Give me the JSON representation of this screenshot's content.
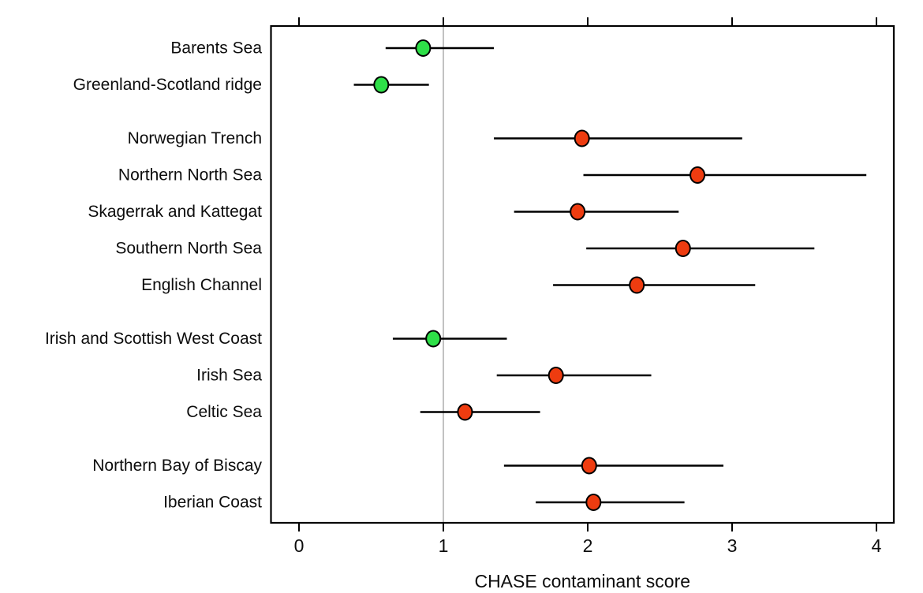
{
  "chart_data": {
    "type": "scatter",
    "subtype": "dot-plot-with-horizontal-error-bars",
    "title": "",
    "xlabel": "CHASE contaminant score",
    "ylabel": "",
    "xlim": [
      0,
      4
    ],
    "xticks": [
      0,
      1,
      2,
      3,
      4
    ],
    "grid": false,
    "legend_position": "none",
    "reference_line_x": 1,
    "categories": [
      "Barents Sea",
      "Greenland-Scotland ridge",
      "Norwegian Trench",
      "Northern North Sea",
      "Skagerrak and Kattegat",
      "Southern North Sea",
      "English Channel",
      "Irish and Scottish West Coast",
      "Irish Sea",
      "Celtic Sea",
      "Northern Bay of Biscay",
      "Iberian Coast"
    ],
    "points": [
      {
        "category": "Barents Sea",
        "value": 0.86,
        "low": 0.6,
        "high": 1.35,
        "status": "good"
      },
      {
        "category": "Greenland-Scotland ridge",
        "value": 0.57,
        "low": 0.38,
        "high": 0.9,
        "status": "good"
      },
      {
        "category": "Norwegian Trench",
        "value": 1.96,
        "low": 1.35,
        "high": 3.07,
        "status": "bad"
      },
      {
        "category": "Northern North Sea",
        "value": 2.76,
        "low": 1.97,
        "high": 3.93,
        "status": "bad"
      },
      {
        "category": "Skagerrak and Kattegat",
        "value": 1.93,
        "low": 1.49,
        "high": 2.63,
        "status": "bad"
      },
      {
        "category": "Southern North Sea",
        "value": 2.66,
        "low": 1.99,
        "high": 3.57,
        "status": "bad"
      },
      {
        "category": "English Channel",
        "value": 2.34,
        "low": 1.76,
        "high": 3.16,
        "status": "bad"
      },
      {
        "category": "Irish and Scottish West Coast",
        "value": 0.93,
        "low": 0.65,
        "high": 1.44,
        "status": "good"
      },
      {
        "category": "Irish Sea",
        "value": 1.78,
        "low": 1.37,
        "high": 2.44,
        "status": "bad"
      },
      {
        "category": "Celtic Sea",
        "value": 1.15,
        "low": 0.84,
        "high": 1.67,
        "status": "bad"
      },
      {
        "category": "Northern Bay of Biscay",
        "value": 2.01,
        "low": 1.42,
        "high": 2.94,
        "status": "bad"
      },
      {
        "category": "Iberian Coast",
        "value": 2.04,
        "low": 1.64,
        "high": 2.67,
        "status": "bad"
      }
    ],
    "groups": [
      [
        0,
        1
      ],
      [
        2,
        3,
        4,
        5,
        6
      ],
      [
        7,
        8,
        9
      ],
      [
        10,
        11
      ]
    ],
    "colors": {
      "good": "#2ee048",
      "bad": "#ee3c10",
      "error_bar": "#000000",
      "reference_line": "#c2c2c2",
      "axis": "#000000",
      "text": "#0d0d0d",
      "background": "#ffffff"
    }
  }
}
